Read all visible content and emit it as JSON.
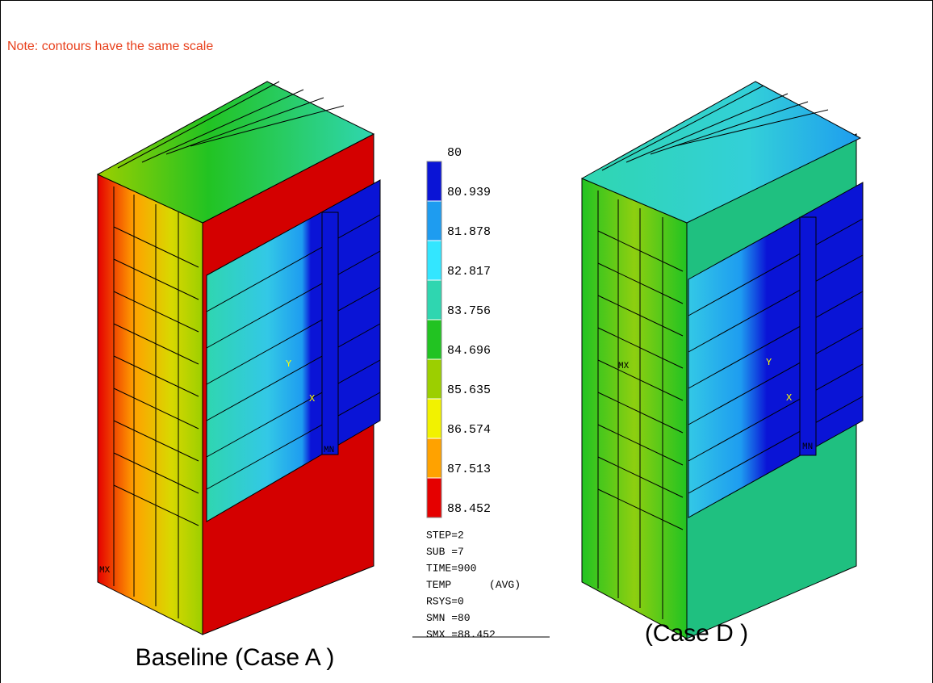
{
  "note": "Note: contours have the same scale",
  "legend": {
    "values": [
      "80",
      "80.939",
      "81.878",
      "82.817",
      "83.756",
      "84.696",
      "85.635",
      "86.574",
      "87.513",
      "88.452"
    ],
    "colors": [
      "#0a14d6",
      "#1e9cf0",
      "#33e6ff",
      "#2fd6b0",
      "#22c322",
      "#9ccf00",
      "#f2f200",
      "#ffa200",
      "#e50000"
    ],
    "info": [
      "STEP=2",
      "SUB =7",
      "TIME=900",
      "TEMP      (AVG)",
      "RSYS=0",
      "SMN =80",
      "SMX =88.452"
    ]
  },
  "models": [
    {
      "caption": "Baseline (Case A )",
      "markers": [
        "Y",
        "X",
        "MX",
        "MN"
      ]
    },
    {
      "caption": "(Case D )",
      "markers": [
        "Y",
        "X",
        "MX",
        "MN"
      ]
    }
  ]
}
